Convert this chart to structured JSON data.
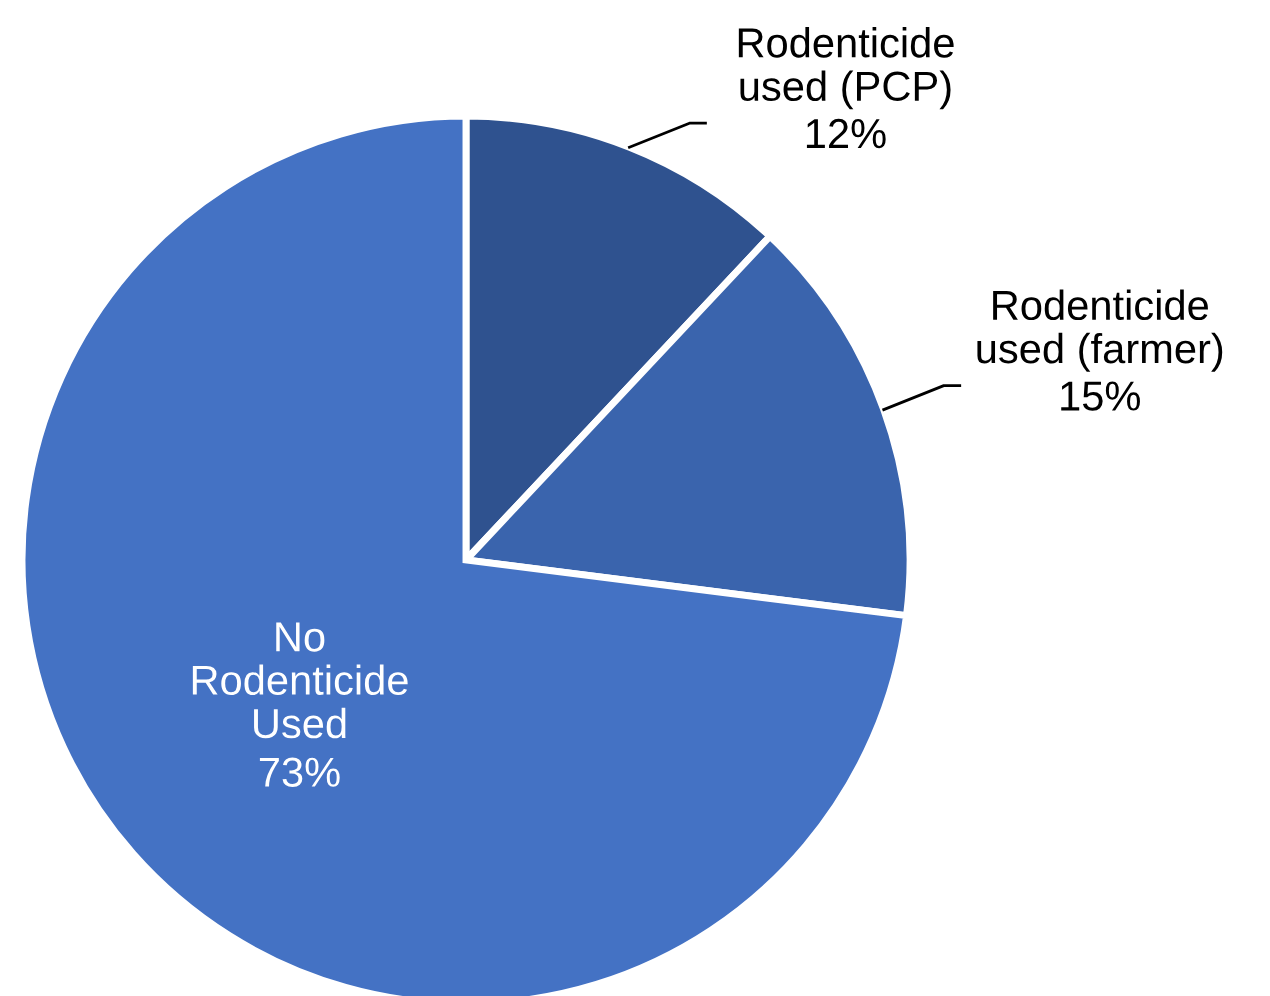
{
  "chart_data": {
    "type": "pie",
    "categories": [
      "Rodenticide\nused (PCP)",
      "Rodenticide\nused (farmer)",
      "No\nRodenticide\nUsed"
    ],
    "values": [
      12,
      15,
      73
    ],
    "colors": [
      "#2f528f",
      "#3a64ad",
      "#4472c4"
    ],
    "value_labels": [
      "12%",
      "15%",
      "73%"
    ]
  }
}
